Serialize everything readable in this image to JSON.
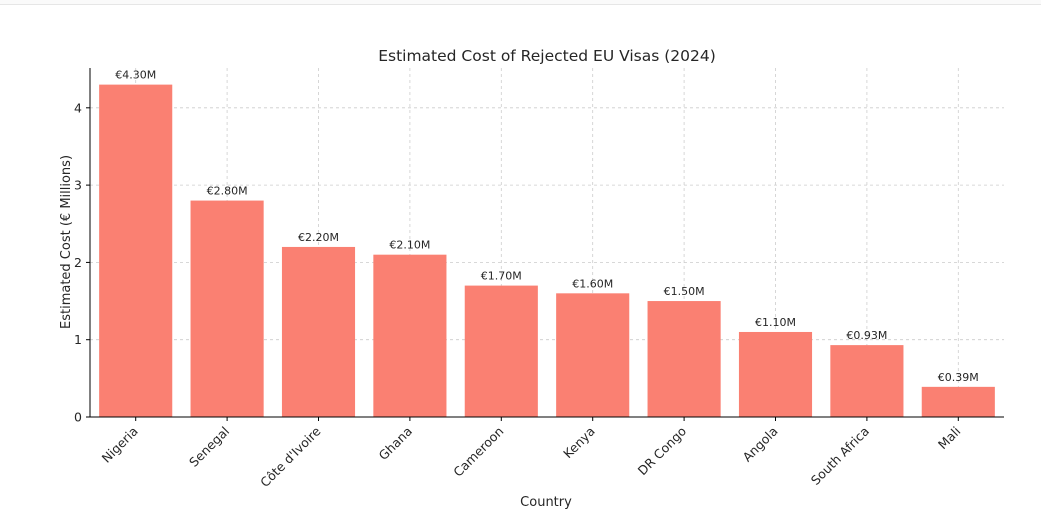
{
  "chart_data": {
    "type": "bar",
    "title": "Estimated Cost of Rejected EU Visas (2024)",
    "xlabel": "Country",
    "ylabel": "Estimated Cost (€ Millions)",
    "categories": [
      "Nigeria",
      "Senegal",
      "Côte d'Ivoire",
      "Ghana",
      "Cameroon",
      "Kenya",
      "DR Congo",
      "Angola",
      "South Africa",
      "Mali"
    ],
    "values": [
      4.3,
      2.8,
      2.2,
      2.1,
      1.7,
      1.6,
      1.5,
      1.1,
      0.93,
      0.39
    ],
    "data_labels": [
      "€4.30M",
      "€2.80M",
      "€2.20M",
      "€2.10M",
      "€1.70M",
      "€1.60M",
      "€1.50M",
      "€1.10M",
      "€0.93M",
      "€0.39M"
    ],
    "yticks": [
      0,
      1,
      2,
      3,
      4
    ],
    "ytick_labels": [
      "0",
      "1",
      "2",
      "3",
      "4"
    ],
    "ylim": [
      0,
      4.515
    ],
    "grid": true,
    "bar_color": "#fa8072"
  }
}
